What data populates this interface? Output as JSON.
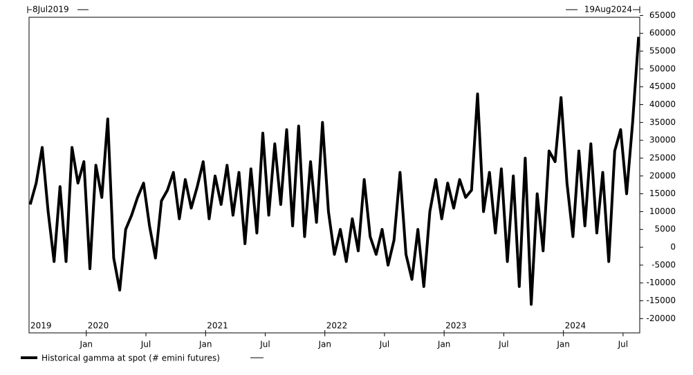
{
  "chart_data": {
    "type": "line",
    "range_labels": [
      "8Jul2019",
      "19Aug2024"
    ],
    "x": [
      2019.53,
      2019.58,
      2019.63,
      2019.68,
      2019.73,
      2019.78,
      2019.83,
      2019.88,
      2019.93,
      2019.98,
      2020.03,
      2020.08,
      2020.13,
      2020.18,
      2020.23,
      2020.28,
      2020.33,
      2020.38,
      2020.43,
      2020.48,
      2020.53,
      2020.58,
      2020.63,
      2020.68,
      2020.73,
      2020.78,
      2020.83,
      2020.88,
      2020.93,
      2020.98,
      2021.03,
      2021.08,
      2021.13,
      2021.18,
      2021.23,
      2021.28,
      2021.33,
      2021.38,
      2021.43,
      2021.48,
      2021.53,
      2021.58,
      2021.63,
      2021.68,
      2021.73,
      2021.78,
      2021.83,
      2021.88,
      2021.93,
      2021.98,
      2022.03,
      2022.08,
      2022.13,
      2022.18,
      2022.23,
      2022.28,
      2022.33,
      2022.38,
      2022.43,
      2022.48,
      2022.53,
      2022.58,
      2022.63,
      2022.68,
      2022.73,
      2022.78,
      2022.83,
      2022.88,
      2022.93,
      2022.98,
      2023.03,
      2023.08,
      2023.13,
      2023.18,
      2023.23,
      2023.28,
      2023.33,
      2023.38,
      2023.43,
      2023.48,
      2023.53,
      2023.58,
      2023.63,
      2023.68,
      2023.73,
      2023.78,
      2023.83,
      2023.88,
      2023.93,
      2023.98,
      2024.03,
      2024.08,
      2024.13,
      2024.18,
      2024.23,
      2024.28,
      2024.33,
      2024.38,
      2024.43,
      2024.48,
      2024.53,
      2024.58,
      2024.63
    ],
    "series": [
      {
        "name": "Historical gamma at spot (# emini futures)",
        "color": "#000000",
        "values": [
          12000,
          18000,
          28000,
          10000,
          -4000,
          17000,
          -4000,
          28000,
          18000,
          24000,
          -6000,
          23000,
          14000,
          36000,
          -3000,
          -12000,
          5000,
          9000,
          14000,
          18000,
          6000,
          -3000,
          13000,
          16000,
          21000,
          8000,
          19000,
          11000,
          17000,
          24000,
          8000,
          20000,
          12000,
          23000,
          9000,
          21000,
          1000,
          22000,
          4000,
          32000,
          9000,
          29000,
          12000,
          33000,
          6000,
          34000,
          3000,
          24000,
          7000,
          35000,
          10000,
          -2000,
          5000,
          -4000,
          8000,
          -1000,
          19000,
          3000,
          -2000,
          5000,
          -5000,
          2000,
          21000,
          -2000,
          -9000,
          5000,
          -11000,
          10000,
          19000,
          8000,
          18000,
          11000,
          19000,
          14000,
          16000,
          43000,
          10000,
          21000,
          4000,
          22000,
          -4000,
          20000,
          -11000,
          25000,
          -16000,
          15000,
          -1000,
          27000,
          24000,
          42000,
          18000,
          3000,
          27000,
          6000,
          29000,
          4000,
          21000,
          -4000,
          27000,
          33000,
          15000,
          35000,
          59000
        ]
      }
    ],
    "xlim": [
      2019.52,
      2024.64
    ],
    "ylim": [
      -24000,
      64500
    ],
    "xticks": [
      {
        "value": 2020,
        "label": "Jan"
      },
      {
        "value": 2020.5,
        "label": "Jul"
      },
      {
        "value": 2021,
        "label": "Jan"
      },
      {
        "value": 2021.5,
        "label": "Jul"
      },
      {
        "value": 2022,
        "label": "Jan"
      },
      {
        "value": 2022.5,
        "label": "Jul"
      },
      {
        "value": 2023,
        "label": "Jan"
      },
      {
        "value": 2023.5,
        "label": "Jul"
      },
      {
        "value": 2024,
        "label": "Jan"
      },
      {
        "value": 2024.5,
        "label": "Jul"
      }
    ],
    "year_labels": [
      {
        "value": 2019.52,
        "label": "2019"
      },
      {
        "value": 2020,
        "label": "2020"
      },
      {
        "value": 2021,
        "label": "2021"
      },
      {
        "value": 2022,
        "label": "2022"
      },
      {
        "value": 2023,
        "label": "2023"
      },
      {
        "value": 2024,
        "label": "2024"
      }
    ],
    "yticks": [
      -20000,
      -15000,
      -10000,
      -5000,
      0,
      5000,
      10000,
      15000,
      20000,
      25000,
      30000,
      35000,
      40000,
      45000,
      50000,
      55000,
      60000,
      65000
    ],
    "y_axis_side": "right",
    "grid": false
  }
}
